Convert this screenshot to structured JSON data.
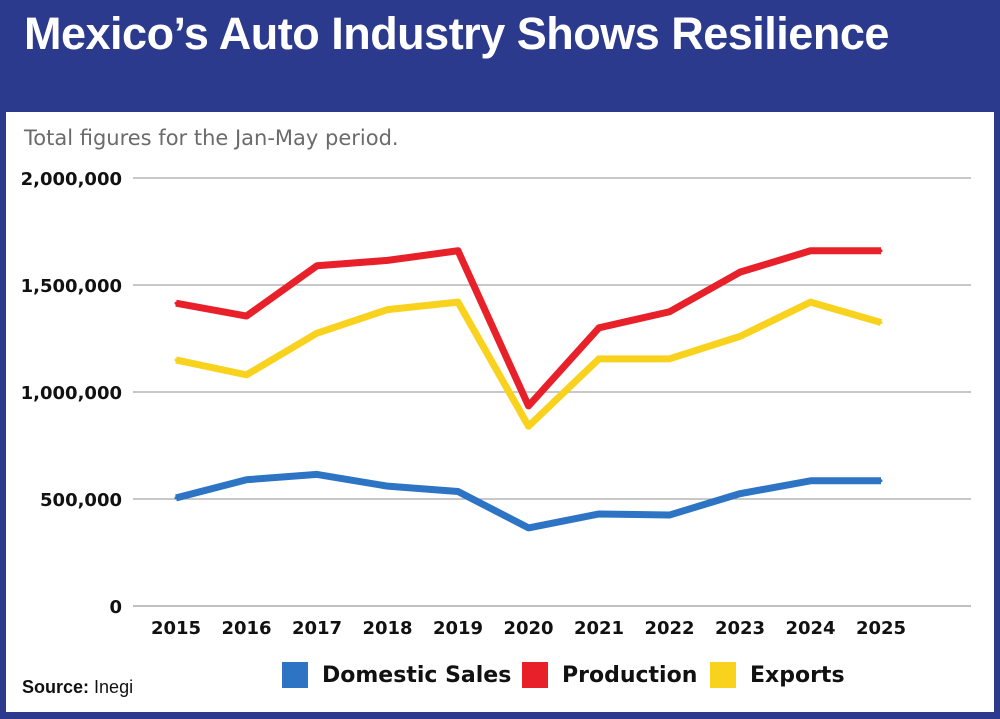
{
  "header": {
    "title": "Mexico’s Auto Industry Shows Resilience"
  },
  "chart_data": {
    "type": "line",
    "title": "Mexico’s Auto Industry Shows Resilience",
    "subtitle": "Total figures for the Jan-May period.",
    "categories": [
      "2015",
      "2016",
      "2017",
      "2018",
      "2019",
      "2020",
      "2021",
      "2022",
      "2023",
      "2024",
      "2025"
    ],
    "ylim": [
      0,
      2000000
    ],
    "yticks": [
      0,
      500000,
      1000000,
      1500000,
      2000000
    ],
    "ytick_labels": [
      "0",
      "500,000",
      "1,000,000",
      "1,500,000",
      "2,000,000"
    ],
    "grid": true,
    "legend_position": "bottom",
    "series": [
      {
        "name": "Production",
        "color": "#e8202a",
        "values": [
          1415000,
          1355000,
          1590000,
          1615000,
          1660000,
          935000,
          1300000,
          1375000,
          1560000,
          1660000,
          1660000
        ]
      },
      {
        "name": "Exports",
        "color": "#f9d21e",
        "values": [
          1150000,
          1080000,
          1275000,
          1385000,
          1420000,
          840000,
          1155000,
          1155000,
          1260000,
          1420000,
          1325000
        ]
      },
      {
        "name": "Domestic Sales",
        "color": "#2e74c4",
        "values": [
          505000,
          590000,
          615000,
          560000,
          535000,
          365000,
          430000,
          425000,
          525000,
          585000,
          585000
        ]
      }
    ],
    "legend": [
      "Domestic Sales",
      "Production",
      "Exports"
    ]
  },
  "source": {
    "label": "Source:",
    "value": "Inegi"
  }
}
